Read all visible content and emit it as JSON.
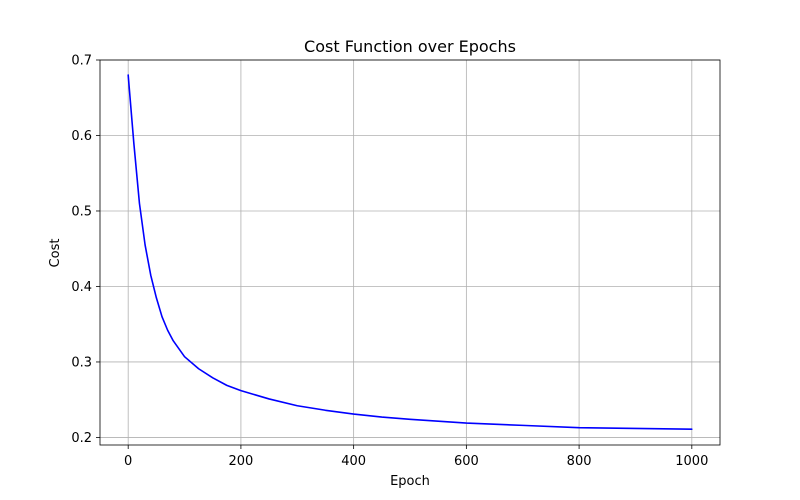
{
  "chart_data": {
    "type": "line",
    "title": "Cost Function over Epochs",
    "xlabel": "Epoch",
    "ylabel": "Cost",
    "xlim": [
      -50,
      1050
    ],
    "ylim": [
      0.19,
      0.7
    ],
    "xticks": [
      0,
      200,
      400,
      600,
      800,
      1000
    ],
    "yticks": [
      0.2,
      0.3,
      0.4,
      0.5,
      0.6,
      0.7
    ],
    "xtick_labels": [
      "0",
      "200",
      "400",
      "600",
      "800",
      "1000"
    ],
    "ytick_labels": [
      "0.2",
      "0.3",
      "0.4",
      "0.5",
      "0.6",
      "0.7"
    ],
    "grid": true,
    "legend": "none",
    "series": [
      {
        "color": "#0000ff",
        "x": [
          0,
          10,
          20,
          30,
          40,
          50,
          60,
          70,
          80,
          100,
          125,
          150,
          175,
          200,
          250,
          300,
          350,
          400,
          450,
          500,
          600,
          700,
          800,
          900,
          1000
        ],
        "y": [
          0.68,
          0.59,
          0.51,
          0.455,
          0.415,
          0.385,
          0.36,
          0.342,
          0.328,
          0.307,
          0.291,
          0.279,
          0.269,
          0.262,
          0.251,
          0.242,
          0.236,
          0.231,
          0.227,
          0.224,
          0.219,
          0.216,
          0.213,
          0.212,
          0.211
        ]
      }
    ]
  }
}
